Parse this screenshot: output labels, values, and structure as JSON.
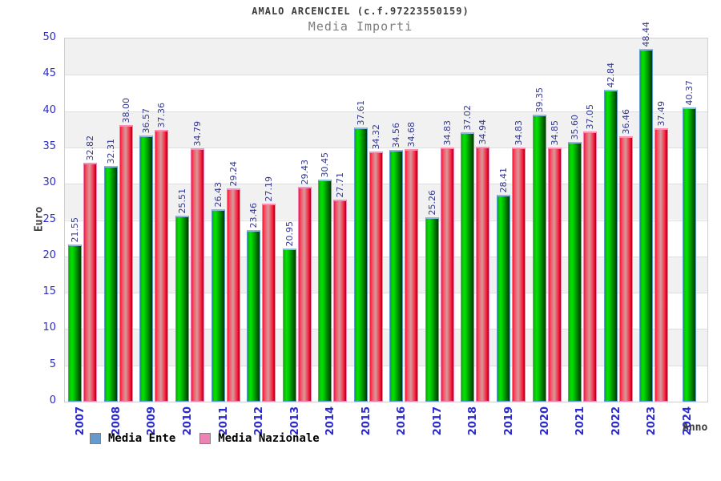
{
  "title": "AMALO ARCENCIEL (c.f.97223550159)",
  "subtitle": "Media Importi",
  "chart_data": {
    "type": "bar",
    "title": "AMALO ARCENCIEL (c.f.97223550159)",
    "subtitle": "Media Importi",
    "xlabel": "Anno",
    "ylabel": "Euro",
    "ylim": [
      0,
      50
    ],
    "ytick_step": 5,
    "grid": "horizontal-bands-alternating",
    "legend_position": "bottom-left",
    "value_decimals": 2,
    "categories": [
      "2007",
      "2008",
      "2009",
      "2010",
      "2011",
      "2012",
      "2013",
      "2014",
      "2015",
      "2016",
      "2017",
      "2018",
      "2019",
      "2020",
      "2021",
      "2022",
      "2023",
      "2024"
    ],
    "series": [
      {
        "name": "Media Ente",
        "color": "#00cc00",
        "values": [
          21.55,
          32.31,
          36.57,
          25.51,
          26.43,
          23.46,
          20.95,
          30.45,
          37.61,
          34.56,
          25.26,
          37.02,
          28.41,
          39.35,
          35.6,
          42.84,
          48.44,
          40.37
        ]
      },
      {
        "name": "Media Nazionale",
        "color": "#ff1133",
        "values": [
          32.82,
          38.0,
          37.36,
          34.79,
          29.24,
          27.19,
          29.43,
          27.71,
          34.32,
          34.68,
          34.83,
          34.94,
          34.83,
          34.85,
          37.05,
          36.46,
          37.49,
          null
        ]
      }
    ]
  },
  "colors": {
    "tick_labels": "#2a2ad0",
    "value_labels": "#333891",
    "legend_ente_marker": "#6699cc",
    "legend_nazionale_marker": "#ee82b4",
    "band_gray": "#f1f1f1",
    "title_text": "#3c3c3c",
    "subtitle_text": "#7d7d7d"
  }
}
